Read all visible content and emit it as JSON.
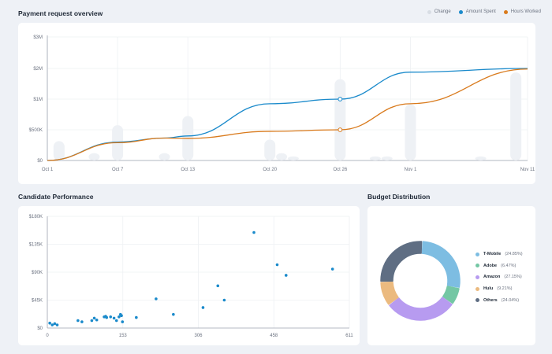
{
  "chart_data": [
    {
      "type": "line",
      "title": "Payment request overview",
      "legend_position": "top-right",
      "x_ticks": [
        "Oct 1",
        "Oct 7",
        "Oct 13",
        "Oct 20",
        "Oct 26",
        "Nov 1",
        "Nov 11"
      ],
      "y_ticks": [
        "$0",
        "$500K",
        "$1M",
        "$2M",
        "$3M"
      ],
      "series": [
        {
          "name": "Change",
          "kind": "bar",
          "color": "#eef1f5",
          "points": [
            {
              "x": "Oct 2",
              "y": 0.63
            },
            {
              "x": "Oct 5",
              "y": 0.24
            },
            {
              "x": "Oct 7",
              "y": 1.15
            },
            {
              "x": "Oct 11",
              "y": 0.24
            },
            {
              "x": "Oct 13",
              "y": 1.45
            },
            {
              "x": "Oct 20",
              "y": 0.68
            },
            {
              "x": "Oct 21",
              "y": 0.24
            },
            {
              "x": "Oct 22",
              "y": 0.13
            },
            {
              "x": "Oct 26",
              "y": 2.65
            },
            {
              "x": "Oct 29",
              "y": 0.13
            },
            {
              "x": "Oct 30",
              "y": 0.13
            },
            {
              "x": "Nov 1",
              "y": 1.83
            },
            {
              "x": "Nov 7",
              "y": 0.13
            },
            {
              "x": "Nov 10",
              "y": 2.87
            }
          ]
        },
        {
          "name": "Amount Spent",
          "kind": "line",
          "color": "#1a8acb",
          "points": [
            {
              "x": "Oct 1",
              "y": 0
            },
            {
              "x": "Oct 7",
              "y": 0.6
            },
            {
              "x": "Oct 11",
              "y": 0.73
            },
            {
              "x": "Oct 13",
              "y": 0.8
            },
            {
              "x": "Oct 20",
              "y": 1.85
            },
            {
              "x": "Oct 26",
              "y": 2.0
            },
            {
              "x": "Nov 1",
              "y": 2.88
            },
            {
              "x": "Nov 11",
              "y": 3.0
            }
          ]
        },
        {
          "name": "Hours Worked",
          "kind": "line",
          "color": "#d97a1c",
          "points": [
            {
              "x": "Oct 1",
              "y": 0
            },
            {
              "x": "Oct 7",
              "y": 0.58
            },
            {
              "x": "Oct 11",
              "y": 0.73
            },
            {
              "x": "Oct 13",
              "y": 0.72
            },
            {
              "x": "Oct 20",
              "y": 0.95
            },
            {
              "x": "Oct 26",
              "y": 1.0
            },
            {
              "x": "Nov 1",
              "y": 1.85
            },
            {
              "x": "Nov 11",
              "y": 2.98
            }
          ]
        }
      ],
      "markers": [
        {
          "series": "Amount Spent",
          "x": "Oct 26",
          "y": 2.0
        },
        {
          "series": "Hours Worked",
          "x": "Oct 26",
          "y": 1.0
        }
      ]
    },
    {
      "type": "scatter",
      "title": "Candidate Performance",
      "x_ticks": [
        "0",
        "153",
        "306",
        "458",
        "611"
      ],
      "y_ticks": [
        "$0",
        "$45K",
        "$90K",
        "$135K",
        "$180K"
      ],
      "xlim": [
        0,
        611
      ],
      "ylim": [
        0,
        180
      ],
      "color": "#1a8acb",
      "points": [
        [
          5,
          8
        ],
        [
          10,
          5
        ],
        [
          15,
          7
        ],
        [
          20,
          5
        ],
        [
          62,
          12
        ],
        [
          70,
          10
        ],
        [
          90,
          12
        ],
        [
          95,
          16
        ],
        [
          100,
          13
        ],
        [
          115,
          18
        ],
        [
          118,
          19
        ],
        [
          120,
          17
        ],
        [
          128,
          18
        ],
        [
          135,
          16
        ],
        [
          140,
          12
        ],
        [
          145,
          18
        ],
        [
          148,
          22
        ],
        [
          150,
          20
        ],
        [
          152,
          10
        ],
        [
          180,
          17
        ],
        [
          220,
          47
        ],
        [
          255,
          22
        ],
        [
          315,
          33
        ],
        [
          345,
          68
        ],
        [
          358,
          45
        ],
        [
          418,
          154
        ],
        [
          465,
          102
        ],
        [
          483,
          85
        ],
        [
          577,
          95
        ]
      ]
    },
    {
      "type": "pie",
      "title": "Budget Distribution",
      "slices": [
        {
          "label": "T-Mobile",
          "value": 24.85,
          "pct": "(24.85%)",
          "color": "#7dbde2"
        },
        {
          "label": "Adobe",
          "value": 6.47,
          "pct": "(6.47%)",
          "color": "#74c7a4"
        },
        {
          "label": "Amazon",
          "value": 27.15,
          "pct": "(27.15%)",
          "color": "#b79bf0"
        },
        {
          "label": "Hulu",
          "value": 9.21,
          "pct": "(9.21%)",
          "color": "#ebba7f"
        },
        {
          "label": "Others",
          "value": 24.04,
          "pct": "(24.04%)",
          "color": "#5f6e83"
        }
      ]
    }
  ]
}
